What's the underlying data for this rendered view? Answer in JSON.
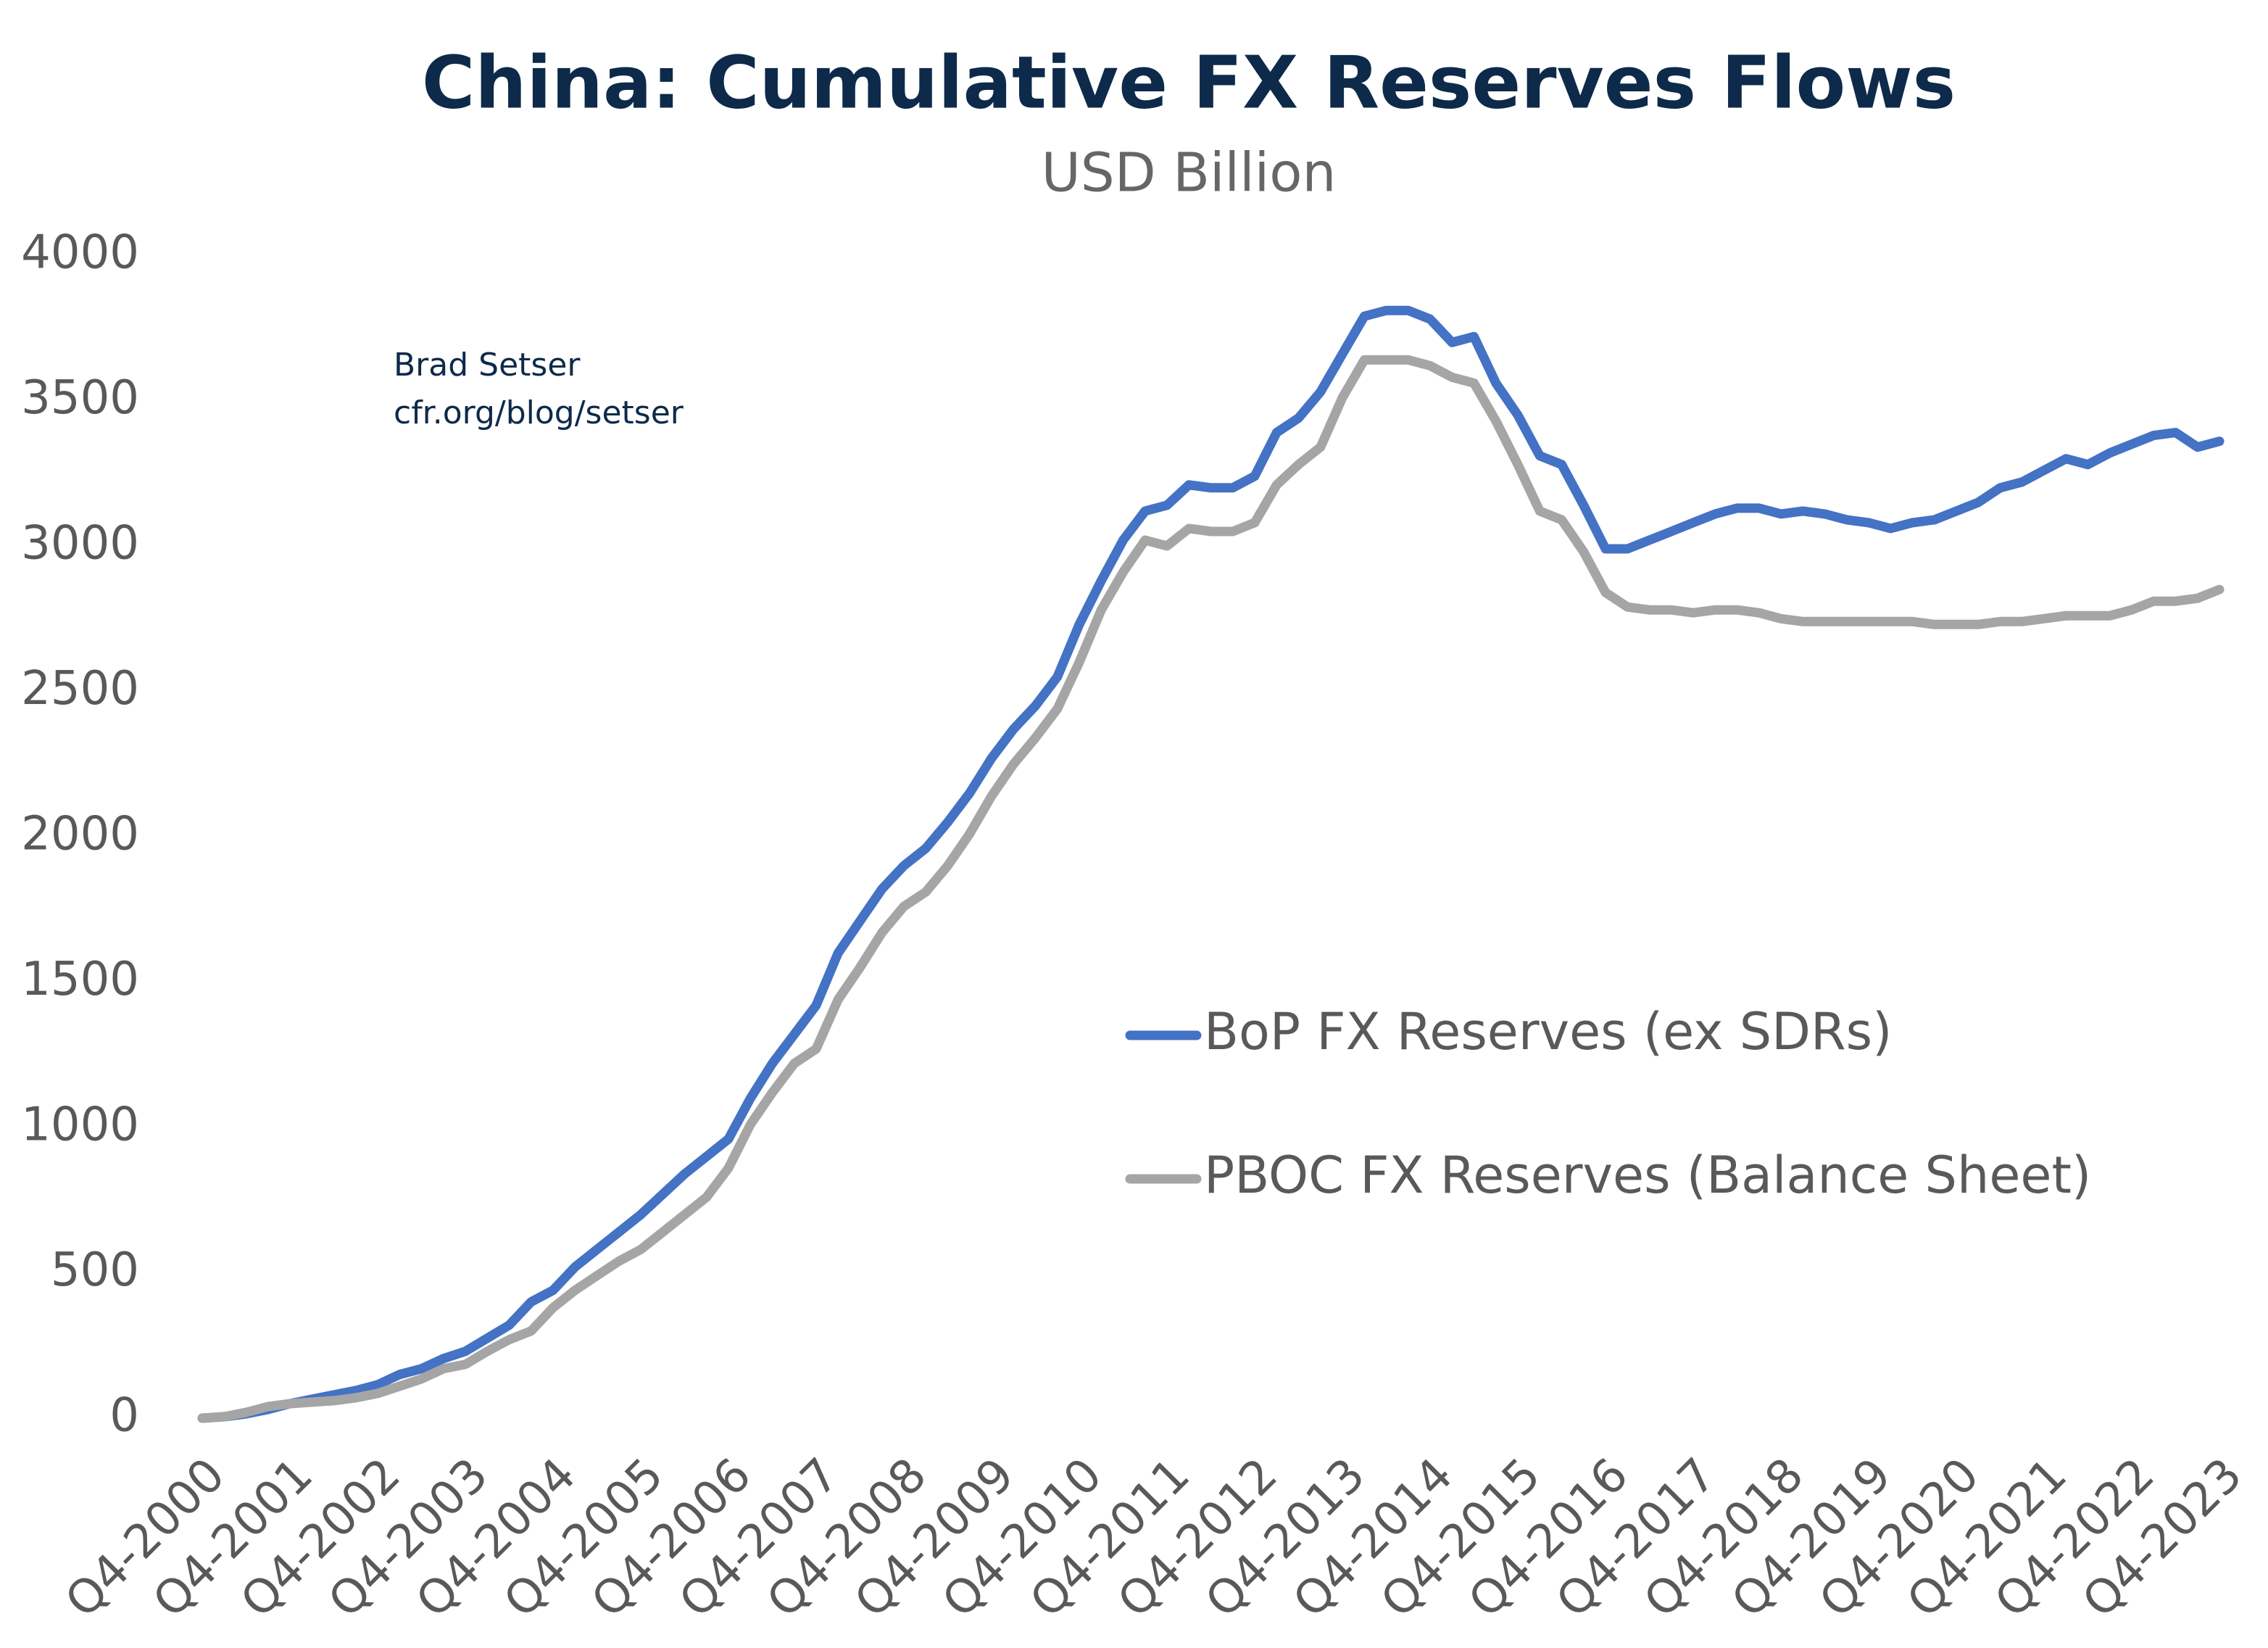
{
  "chart_data": {
    "type": "line",
    "title": "China: Cumulative FX Reserves Flows",
    "subtitle": "USD Billion",
    "annotations": [
      "Brad Setser",
      "cfr.org/blog/setser"
    ],
    "categories": [
      "Q4-2000",
      null,
      null,
      null,
      "Q4-2001",
      null,
      null,
      null,
      "Q4-2002",
      null,
      null,
      null,
      "Q4-2003",
      null,
      null,
      null,
      "Q4-2004",
      null,
      null,
      null,
      "Q4-2005",
      null,
      null,
      null,
      "Q4-2006",
      null,
      null,
      null,
      "Q4-2007",
      null,
      null,
      null,
      "Q4-2008",
      null,
      null,
      null,
      "Q4-2009",
      null,
      null,
      null,
      "Q4-2010",
      null,
      null,
      null,
      "Q4-2011",
      null,
      null,
      null,
      "Q4-2012",
      null,
      null,
      null,
      "Q4-2013",
      null,
      null,
      null,
      "Q4-2014",
      null,
      null,
      null,
      "Q4-2015",
      null,
      null,
      null,
      "Q4-2016",
      null,
      null,
      null,
      "Q4-2017",
      null,
      null,
      null,
      "Q4-2018",
      null,
      null,
      null,
      "Q4-2019",
      null,
      null,
      null,
      "Q4-2020",
      null,
      null,
      null,
      "Q4-2021",
      null,
      null,
      null,
      "Q4-2022",
      null,
      null,
      null,
      "Q4-2023"
    ],
    "series": [
      {
        "name": "BoP FX Reserves (ex SDRs)",
        "color": "#4472c4",
        "values": [
          0,
          5,
          15,
          30,
          50,
          65,
          80,
          95,
          115,
          150,
          170,
          205,
          230,
          275,
          320,
          400,
          440,
          520,
          580,
          640,
          700,
          770,
          840,
          900,
          960,
          1100,
          1220,
          1320,
          1420,
          1600,
          1710,
          1820,
          1900,
          1960,
          2050,
          2150,
          2270,
          2370,
          2450,
          2550,
          2730,
          2880,
          3020,
          3120,
          3140,
          3210,
          3200,
          3200,
          3240,
          3390,
          3440,
          3530,
          3660,
          3790,
          3810,
          3810,
          3780,
          3700,
          3720,
          3560,
          3450,
          3310,
          3280,
          3140,
          2990,
          2990,
          3020,
          3050,
          3080,
          3110,
          3130,
          3130,
          3110,
          3120,
          3110,
          3090,
          3080,
          3060,
          3080,
          3090,
          3120,
          3150,
          3200,
          3220,
          3260,
          3300,
          3280,
          3320,
          3350,
          3380,
          3390,
          3340,
          3360
        ]
      },
      {
        "name": "PBOC FX Reserves (Balance Sheet)",
        "color": "#a5a5a5",
        "values": [
          0,
          5,
          20,
          40,
          50,
          55,
          60,
          70,
          85,
          110,
          135,
          170,
          185,
          230,
          270,
          300,
          380,
          440,
          490,
          540,
          580,
          640,
          700,
          760,
          860,
          1010,
          1120,
          1220,
          1270,
          1440,
          1550,
          1670,
          1760,
          1810,
          1900,
          2010,
          2140,
          2250,
          2340,
          2440,
          2600,
          2780,
          2910,
          3020,
          3000,
          3060,
          3050,
          3050,
          3080,
          3210,
          3280,
          3340,
          3510,
          3640,
          3640,
          3640,
          3620,
          3580,
          3560,
          3430,
          3280,
          3120,
          3090,
          2980,
          2840,
          2790,
          2780,
          2780,
          2770,
          2780,
          2780,
          2770,
          2750,
          2740,
          2740,
          2740,
          2740,
          2740,
          2740,
          2730,
          2730,
          2730,
          2740,
          2740,
          2750,
          2760,
          2760,
          2760,
          2780,
          2810,
          2810,
          2820,
          2850
        ]
      }
    ],
    "ylim": [
      0,
      4000
    ],
    "yticks": [
      0,
      500,
      1000,
      1500,
      2000,
      2500,
      3000,
      3500,
      4000
    ],
    "grid": false,
    "legend_position": "center-right"
  }
}
